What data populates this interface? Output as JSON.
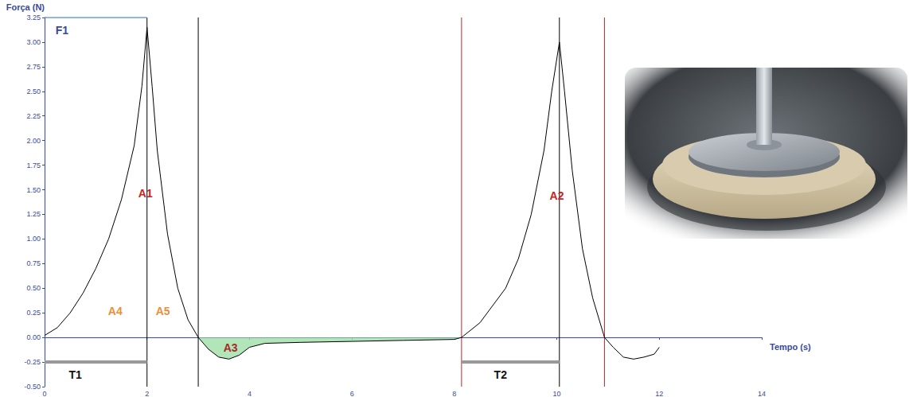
{
  "chart_data": {
    "type": "line",
    "x_label": "Tempo (s)",
    "y_label": "Força (N)",
    "grid": false,
    "x": [
      0,
      0.25,
      0.5,
      0.75,
      1.0,
      1.25,
      1.5,
      1.75,
      1.9,
      2.0,
      2.1,
      2.2,
      2.4,
      2.6,
      2.8,
      3.0,
      3.2,
      3.4,
      3.6,
      3.8,
      4.0,
      4.3,
      5.0,
      6.0,
      7.0,
      8.0,
      8.14,
      8.5,
      9.0,
      9.25,
      9.5,
      9.75,
      9.9,
      10.05,
      10.15,
      10.3,
      10.5,
      10.7,
      10.93,
      11.1,
      11.3,
      11.5,
      11.7,
      11.9,
      12.0
    ],
    "series": [
      {
        "color": "#000000",
        "values": [
          0.02,
          0.1,
          0.25,
          0.45,
          0.7,
          1.0,
          1.4,
          1.95,
          2.55,
          3.15,
          2.55,
          1.9,
          1.05,
          0.5,
          0.18,
          0.0,
          -0.12,
          -0.2,
          -0.22,
          -0.18,
          -0.1,
          -0.06,
          -0.05,
          -0.04,
          -0.03,
          -0.02,
          0.0,
          0.15,
          0.5,
          0.8,
          1.25,
          1.9,
          2.5,
          3.0,
          2.5,
          1.7,
          0.9,
          0.4,
          0.0,
          -0.1,
          -0.2,
          -0.22,
          -0.2,
          -0.17,
          -0.1
        ]
      }
    ],
    "xlim": [
      0,
      14
    ],
    "xticks": [
      0,
      2,
      4,
      6,
      8,
      10,
      12,
      14
    ],
    "ylim": [
      -0.5,
      3.25
    ],
    "yticks": [
      {
        "value": -0.5,
        "label": "-0.50"
      },
      -0.25,
      {
        "value": 0,
        "label": "0.00"
      },
      0.25,
      {
        "value": 0.5,
        "label": "0.50"
      },
      0.75,
      {
        "value": 1,
        "label": "1.00"
      },
      1.25,
      {
        "value": 1.5,
        "label": "1.50"
      },
      1.75,
      {
        "value": 2,
        "label": "2.00"
      },
      2.25,
      {
        "value": 2.5,
        "label": "2.50"
      },
      2.75,
      {
        "value": 3,
        "label": "3.00"
      },
      3.25
    ],
    "vlines": [
      {
        "x": 2.0,
        "color": "#000000"
      },
      {
        "x": 3.0,
        "color": "#000000"
      },
      {
        "x": 8.14,
        "color": "#cc2222"
      },
      {
        "x": 10.05,
        "color": "#000000"
      },
      {
        "x": 10.93,
        "color": "#cc2222"
      }
    ],
    "hlines": [
      {
        "x0": 0,
        "x1": 2.0,
        "y": 3.25,
        "color": "#5b8fd6"
      }
    ],
    "spans": [
      {
        "x0": 0,
        "x1": 2.0,
        "y": -0.25,
        "color": "#999999"
      },
      {
        "x0": 8.14,
        "x1": 10.05,
        "y": -0.25,
        "color": "#999999"
      }
    ],
    "shade": {
      "x0": 3.0,
      "x1": 8.14,
      "color": "#9fe0a8"
    },
    "annotations": [
      {
        "text": "F1",
        "x": 0.34,
        "y": 3.12,
        "color": "#3b4aa0"
      },
      {
        "text": "A1",
        "x": 1.97,
        "y": 1.46,
        "color": "#cc2222"
      },
      {
        "text": "A2",
        "x": 10.0,
        "y": 1.44,
        "color": "#cc2222"
      },
      {
        "text": "A3",
        "x": 3.63,
        "y": -0.1,
        "color": "#a52a2a"
      },
      {
        "text": "A4",
        "x": 1.38,
        "y": 0.27,
        "color": "#e8903a"
      },
      {
        "text": "A5",
        "x": 2.31,
        "y": 0.27,
        "color": "#e8903a"
      },
      {
        "text": "T1",
        "x": 0.6,
        "y": -0.38,
        "color": "#111111"
      },
      {
        "text": "T2",
        "x": 8.9,
        "y": -0.38,
        "color": "#111111"
      }
    ]
  }
}
